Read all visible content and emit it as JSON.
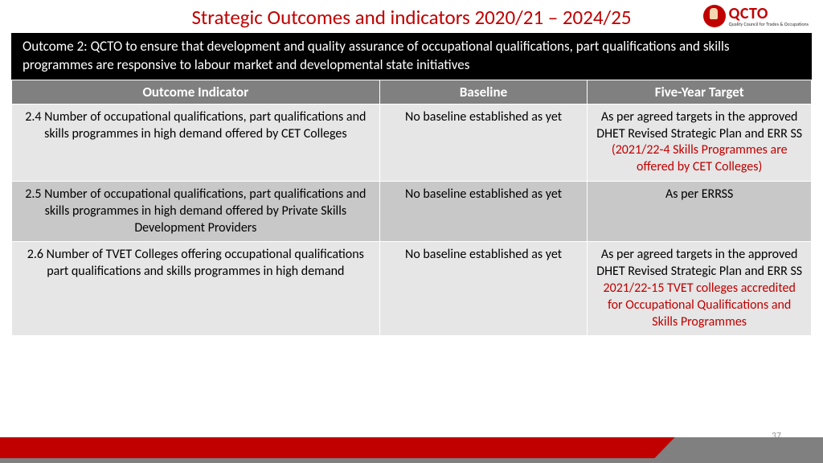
{
  "title": "Strategic Outcomes and indicators 2020/21 – 2024/25",
  "logo": {
    "main": "QCTO",
    "sub": "Quality Council for Trades & Occupations"
  },
  "outcome_banner": "Outcome 2: QCTO to ensure that development and quality assurance of occupational qualifications, part qualifications and skills programmes are responsive to labour market and developmental state initiatives",
  "columns": [
    "Outcome Indicator",
    "Baseline",
    "Five-Year Target"
  ],
  "rows": [
    {
      "indicator": "2.4 Number of occupational qualifications, part qualifications and skills programmes in high demand offered by CET Colleges",
      "baseline": "No baseline established as yet",
      "target_main": "As per agreed targets in the approved DHET Revised Strategic Plan and ERR SS",
      "target_red": "(2021/22-4 Skills Programmes are offered by CET Colleges)"
    },
    {
      "indicator": "2.5 Number of occupational qualifications, part qualifications and skills programmes in high demand offered by Private Skills Development Providers",
      "baseline": "No baseline established as yet",
      "target_main": "As per ERRSS",
      "target_red": ""
    },
    {
      "indicator": "2.6 Number of TVET Colleges offering occupational qualifications part qualifications and skills programmes in high demand",
      "baseline": "No baseline established as yet",
      "target_main": "As per agreed targets in the approved DHET Revised Strategic Plan and ERR SS",
      "target_red": "2021/22-15 TVET colleges accredited for Occupational Qualifications and Skills Programmes"
    }
  ],
  "page_number": "37",
  "colors": {
    "title": "#c00000",
    "banner_bg": "#000000",
    "banner_text": "#ffffff",
    "header_bg": "#808080",
    "row_light": "#e6e6e6",
    "row_dark": "#c8c8c8",
    "highlight": "#c00000",
    "footer_gray": "#808080"
  }
}
